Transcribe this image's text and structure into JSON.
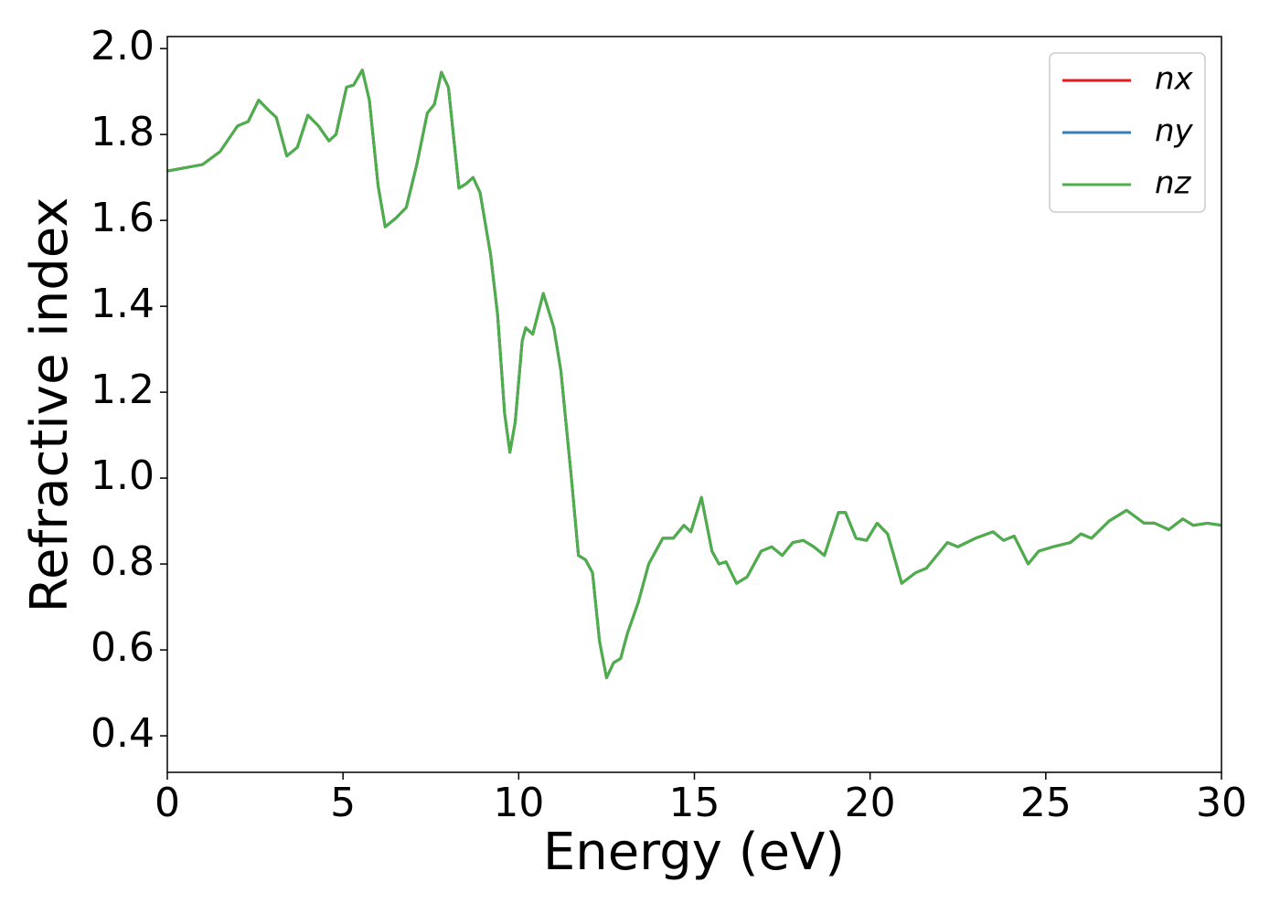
{
  "chart_data": {
    "type": "line",
    "x_label": "Energy (eV)",
    "y_label": "Refractive index",
    "x": [
      0,
      1,
      1.5,
      2,
      2.3,
      2.6,
      2.9,
      3.1,
      3.4,
      3.7,
      4.0,
      4.3,
      4.6,
      4.8,
      5.1,
      5.3,
      5.55,
      5.75,
      6.0,
      6.2,
      6.5,
      6.8,
      7.1,
      7.4,
      7.6,
      7.8,
      8.0,
      8.3,
      8.5,
      8.7,
      8.9,
      9.2,
      9.4,
      9.6,
      9.75,
      9.9,
      10.1,
      10.2,
      10.4,
      10.7,
      11.0,
      11.2,
      11.5,
      11.7,
      11.9,
      12.1,
      12.3,
      12.5,
      12.7,
      12.9,
      13.1,
      13.4,
      13.7,
      14.1,
      14.4,
      14.7,
      14.9,
      15.2,
      15.5,
      15.7,
      15.9,
      16.2,
      16.5,
      16.9,
      17.2,
      17.5,
      17.8,
      18.1,
      18.4,
      18.7,
      19.1,
      19.3,
      19.6,
      19.9,
      20.2,
      20.5,
      20.9,
      21.3,
      21.6,
      22.2,
      22.5,
      23.0,
      23.5,
      23.8,
      24.1,
      24.5,
      24.8,
      25.2,
      25.7,
      26.0,
      26.3,
      26.8,
      27.3,
      27.8,
      28.1,
      28.5,
      28.9,
      29.2,
      29.6,
      30
    ],
    "series": [
      {
        "name": "nx",
        "color": "#e41a1c",
        "values": [
          1.715,
          1.73,
          1.76,
          1.82,
          1.83,
          1.88,
          1.855,
          1.84,
          1.75,
          1.77,
          1.845,
          1.82,
          1.785,
          1.8,
          1.91,
          1.915,
          1.95,
          1.88,
          1.68,
          1.585,
          1.605,
          1.63,
          1.73,
          1.85,
          1.87,
          1.945,
          1.91,
          1.675,
          1.685,
          1.7,
          1.665,
          1.52,
          1.38,
          1.15,
          1.06,
          1.13,
          1.32,
          1.35,
          1.335,
          1.43,
          1.35,
          1.25,
          1.0,
          0.82,
          0.81,
          0.78,
          0.62,
          0.535,
          0.57,
          0.58,
          0.64,
          0.71,
          0.8,
          0.86,
          0.86,
          0.89,
          0.875,
          0.955,
          0.83,
          0.8,
          0.805,
          0.755,
          0.77,
          0.83,
          0.84,
          0.82,
          0.85,
          0.855,
          0.84,
          0.82,
          0.92,
          0.92,
          0.86,
          0.855,
          0.895,
          0.87,
          0.755,
          0.78,
          0.79,
          0.85,
          0.84,
          0.86,
          0.875,
          0.855,
          0.865,
          0.8,
          0.83,
          0.84,
          0.85,
          0.87,
          0.86,
          0.9,
          0.925,
          0.895,
          0.895,
          0.88,
          0.905,
          0.89,
          0.895,
          0.89
        ]
      },
      {
        "name": "ny",
        "color": "#377eb8",
        "values": [
          1.715,
          1.73,
          1.76,
          1.82,
          1.83,
          1.88,
          1.855,
          1.84,
          1.75,
          1.77,
          1.845,
          1.82,
          1.785,
          1.8,
          1.91,
          1.915,
          1.95,
          1.88,
          1.68,
          1.585,
          1.605,
          1.63,
          1.73,
          1.85,
          1.87,
          1.945,
          1.91,
          1.675,
          1.685,
          1.7,
          1.665,
          1.52,
          1.38,
          1.15,
          1.06,
          1.13,
          1.32,
          1.35,
          1.335,
          1.43,
          1.35,
          1.25,
          1.0,
          0.82,
          0.81,
          0.78,
          0.62,
          0.535,
          0.57,
          0.58,
          0.64,
          0.71,
          0.8,
          0.86,
          0.86,
          0.89,
          0.875,
          0.955,
          0.83,
          0.8,
          0.805,
          0.755,
          0.77,
          0.83,
          0.84,
          0.82,
          0.85,
          0.855,
          0.84,
          0.82,
          0.92,
          0.92,
          0.86,
          0.855,
          0.895,
          0.87,
          0.755,
          0.78,
          0.79,
          0.85,
          0.84,
          0.86,
          0.875,
          0.855,
          0.865,
          0.8,
          0.83,
          0.84,
          0.85,
          0.87,
          0.86,
          0.9,
          0.925,
          0.895,
          0.895,
          0.88,
          0.905,
          0.89,
          0.895,
          0.89
        ]
      },
      {
        "name": "nz",
        "color": "#4daf4a",
        "values": [
          1.715,
          1.73,
          1.76,
          1.82,
          1.83,
          1.88,
          1.855,
          1.84,
          1.75,
          1.77,
          1.845,
          1.82,
          1.785,
          1.8,
          1.91,
          1.915,
          1.95,
          1.88,
          1.68,
          1.585,
          1.605,
          1.63,
          1.73,
          1.85,
          1.87,
          1.945,
          1.91,
          1.675,
          1.685,
          1.7,
          1.665,
          1.52,
          1.38,
          1.15,
          1.06,
          1.13,
          1.32,
          1.35,
          1.335,
          1.43,
          1.35,
          1.25,
          1.0,
          0.82,
          0.81,
          0.78,
          0.62,
          0.535,
          0.57,
          0.58,
          0.64,
          0.71,
          0.8,
          0.86,
          0.86,
          0.89,
          0.875,
          0.955,
          0.83,
          0.8,
          0.805,
          0.755,
          0.77,
          0.83,
          0.84,
          0.82,
          0.85,
          0.855,
          0.84,
          0.82,
          0.92,
          0.92,
          0.86,
          0.855,
          0.895,
          0.87,
          0.755,
          0.78,
          0.79,
          0.85,
          0.84,
          0.86,
          0.875,
          0.855,
          0.865,
          0.8,
          0.83,
          0.84,
          0.85,
          0.87,
          0.86,
          0.9,
          0.925,
          0.895,
          0.895,
          0.88,
          0.905,
          0.89,
          0.895,
          0.89
        ]
      }
    ],
    "xlim": [
      0,
      30
    ],
    "xticks": [
      0,
      5,
      10,
      15,
      20,
      25,
      30
    ],
    "ylim": [
      0.315,
      2.028
    ],
    "yticks": [
      0.4,
      0.6,
      0.8,
      {
        "value": 1.0,
        "label": "1.0"
      },
      1.2,
      1.4,
      1.6,
      1.8,
      {
        "value": 2.0,
        "label": "2.0"
      }
    ],
    "grid": false,
    "legend": "upper right"
  }
}
